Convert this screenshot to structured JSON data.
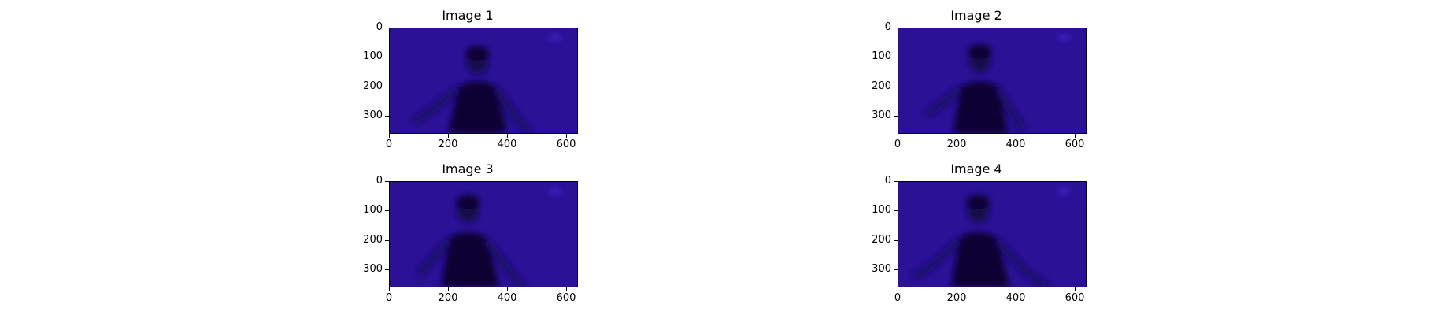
{
  "figure": {
    "colors": {
      "background": "#2a1196",
      "dark": "#0b0530",
      "mid": "#1a0b6a",
      "light": "#3a22c2"
    },
    "panels": [
      {
        "title": "Image 1",
        "yticks": [
          "0",
          "100",
          "200",
          "300"
        ],
        "xticks": [
          "0",
          "200",
          "400",
          "600"
        ],
        "content": "blurred-figure"
      },
      {
        "title": "Image 2",
        "yticks": [
          "0",
          "100",
          "200",
          "300"
        ],
        "xticks": [
          "0",
          "200",
          "400",
          "600"
        ],
        "content": "blurred-figure"
      },
      {
        "title": "Image 3",
        "yticks": [
          "0",
          "100",
          "200",
          "300"
        ],
        "xticks": [
          "0",
          "200",
          "400",
          "600"
        ],
        "content": "blurred-figure"
      },
      {
        "title": "Image 4",
        "yticks": [
          "0",
          "100",
          "200",
          "300"
        ],
        "xticks": [
          "0",
          "200",
          "400",
          "600"
        ],
        "content": "blurred-figure"
      }
    ]
  }
}
